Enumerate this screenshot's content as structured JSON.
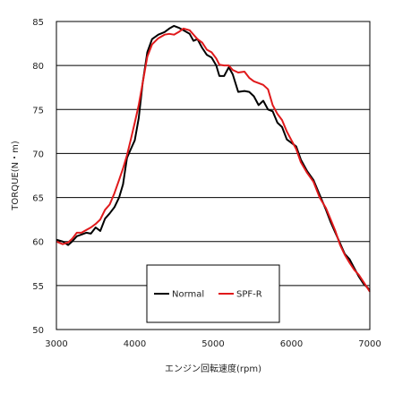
{
  "chart_data": {
    "type": "line",
    "xlabel": "エンジン回転速度(rpm)",
    "ylabel": "TORQUE(N・m)",
    "xlim": [
      3000,
      7000
    ],
    "ylim": [
      50,
      85
    ],
    "x_ticks": [
      "3000",
      "4000",
      "5000",
      "6000",
      "7000"
    ],
    "y_ticks": [
      "50",
      "55",
      "60",
      "65",
      "70",
      "75",
      "80",
      "85"
    ],
    "grid": "horizontal",
    "legend_placement": "bottom-center",
    "series": [
      {
        "name": "Normal",
        "color": "#000000",
        "points": [
          [
            3000,
            60.2
          ],
          [
            3080,
            60.0
          ],
          [
            3150,
            59.6
          ],
          [
            3200,
            60.0
          ],
          [
            3260,
            60.6
          ],
          [
            3320,
            60.8
          ],
          [
            3380,
            61.0
          ],
          [
            3440,
            60.9
          ],
          [
            3500,
            61.6
          ],
          [
            3560,
            61.2
          ],
          [
            3620,
            62.6
          ],
          [
            3680,
            63.2
          ],
          [
            3740,
            63.9
          ],
          [
            3800,
            65.0
          ],
          [
            3850,
            66.5
          ],
          [
            3900,
            69.5
          ],
          [
            3950,
            70.5
          ],
          [
            4000,
            71.5
          ],
          [
            4050,
            74.0
          ],
          [
            4100,
            78.0
          ],
          [
            4160,
            81.5
          ],
          [
            4220,
            83.0
          ],
          [
            4300,
            83.5
          ],
          [
            4380,
            83.8
          ],
          [
            4440,
            84.2
          ],
          [
            4500,
            84.5
          ],
          [
            4560,
            84.3
          ],
          [
            4620,
            84.0
          ],
          [
            4700,
            83.6
          ],
          [
            4750,
            82.8
          ],
          [
            4800,
            83.0
          ],
          [
            4860,
            82.0
          ],
          [
            4920,
            81.2
          ],
          [
            4980,
            80.9
          ],
          [
            5040,
            80.0
          ],
          [
            5080,
            78.8
          ],
          [
            5140,
            78.8
          ],
          [
            5200,
            79.8
          ],
          [
            5250,
            79.0
          ],
          [
            5320,
            77.0
          ],
          [
            5400,
            77.1
          ],
          [
            5460,
            77.0
          ],
          [
            5520,
            76.5
          ],
          [
            5580,
            75.5
          ],
          [
            5640,
            76.0
          ],
          [
            5700,
            75.0
          ],
          [
            5760,
            74.8
          ],
          [
            5820,
            73.5
          ],
          [
            5880,
            73.0
          ],
          [
            5940,
            71.6
          ],
          [
            6000,
            71.2
          ],
          [
            6060,
            70.8
          ],
          [
            6120,
            69.3
          ],
          [
            6200,
            68.0
          ],
          [
            6280,
            67.0
          ],
          [
            6360,
            65.3
          ],
          [
            6440,
            63.6
          ],
          [
            6500,
            62.2
          ],
          [
            6560,
            61.0
          ],
          [
            6620,
            59.8
          ],
          [
            6680,
            58.6
          ],
          [
            6740,
            58.0
          ],
          [
            6800,
            57.0
          ],
          [
            6860,
            56.0
          ],
          [
            6920,
            55.2
          ],
          [
            7000,
            54.5
          ]
        ]
      },
      {
        "name": "SPF-R",
        "color": "#e0191b",
        "points": [
          [
            3000,
            60.0
          ],
          [
            3080,
            59.7
          ],
          [
            3150,
            59.9
          ],
          [
            3200,
            60.3
          ],
          [
            3260,
            61.0
          ],
          [
            3320,
            61.0
          ],
          [
            3380,
            61.3
          ],
          [
            3440,
            61.6
          ],
          [
            3500,
            62.0
          ],
          [
            3560,
            62.5
          ],
          [
            3620,
            63.6
          ],
          [
            3680,
            64.2
          ],
          [
            3740,
            65.5
          ],
          [
            3800,
            67.0
          ],
          [
            3850,
            68.3
          ],
          [
            3900,
            69.8
          ],
          [
            3950,
            71.6
          ],
          [
            4000,
            73.5
          ],
          [
            4050,
            75.5
          ],
          [
            4100,
            78.0
          ],
          [
            4160,
            81.0
          ],
          [
            4220,
            82.4
          ],
          [
            4300,
            83.1
          ],
          [
            4380,
            83.5
          ],
          [
            4440,
            83.6
          ],
          [
            4500,
            83.5
          ],
          [
            4560,
            83.8
          ],
          [
            4620,
            84.2
          ],
          [
            4700,
            84.0
          ],
          [
            4750,
            83.5
          ],
          [
            4800,
            83.0
          ],
          [
            4860,
            82.6
          ],
          [
            4920,
            81.8
          ],
          [
            4980,
            81.5
          ],
          [
            5040,
            80.8
          ],
          [
            5080,
            80.1
          ],
          [
            5140,
            80.0
          ],
          [
            5200,
            80.0
          ],
          [
            5250,
            79.5
          ],
          [
            5320,
            79.2
          ],
          [
            5400,
            79.3
          ],
          [
            5460,
            78.6
          ],
          [
            5520,
            78.2
          ],
          [
            5580,
            78.0
          ],
          [
            5640,
            77.8
          ],
          [
            5700,
            77.3
          ],
          [
            5760,
            75.5
          ],
          [
            5820,
            74.5
          ],
          [
            5880,
            73.8
          ],
          [
            5940,
            72.5
          ],
          [
            6000,
            71.5
          ],
          [
            6060,
            70.5
          ],
          [
            6120,
            69.0
          ],
          [
            6200,
            67.8
          ],
          [
            6280,
            66.8
          ],
          [
            6360,
            65.0
          ],
          [
            6440,
            63.8
          ],
          [
            6500,
            62.5
          ],
          [
            6560,
            61.2
          ],
          [
            6620,
            59.6
          ],
          [
            6680,
            58.5
          ],
          [
            6740,
            57.6
          ],
          [
            6800,
            56.8
          ],
          [
            6860,
            56.2
          ],
          [
            6920,
            55.4
          ],
          [
            7000,
            54.3
          ]
        ]
      }
    ]
  }
}
